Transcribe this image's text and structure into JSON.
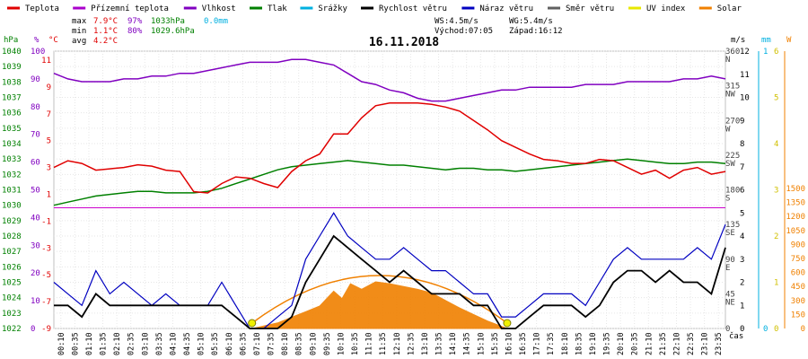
{
  "chart_data": {
    "type": "line",
    "title": "16.11.2018",
    "legend": {
      "placement": "top",
      "items": [
        {
          "name": "Teplota",
          "color": "#e00000"
        },
        {
          "name": "Přízemní teplota",
          "color": "#aa00cc"
        },
        {
          "name": "Vlhkost",
          "color": "#8000c0"
        },
        {
          "name": "Tlak",
          "color": "#008000"
        },
        {
          "name": "Srážky",
          "color": "#00b0e0"
        },
        {
          "name": "Rychlost větru",
          "color": "#000000"
        },
        {
          "name": "Náraz větru",
          "color": "#0000c0"
        },
        {
          "name": "Směr větru",
          "color": "#606060"
        },
        {
          "name": "UV index",
          "color": "#e8e800"
        },
        {
          "name": "Solar",
          "color": "#f08000"
        }
      ]
    },
    "stats": {
      "max_label": "max",
      "max_temp": "7.9°C",
      "max_hum": "97%",
      "max_press": "1033hPa",
      "rain": "0.0mm",
      "min_label": "min",
      "min_temp": "1.1°C",
      "min_hum": "80%",
      "min_press": "1029.6hPa",
      "avg_label": "avg",
      "avg_temp": "4.2°C",
      "ws": "WS:4.5m/s",
      "wg": "WG:5.4m/s",
      "sunrise": "Východ:07:05",
      "sunset": "Západ:16:12"
    },
    "axes": {
      "pressure": {
        "unit": "hPa",
        "ticks": [
          "1040",
          "1039",
          "1038",
          "1037",
          "1036",
          "1035",
          "1034",
          "1033",
          "1032",
          "1031",
          "1030",
          "1029",
          "1028",
          "1027",
          "1026",
          "1025",
          "1024",
          "1023",
          "1022"
        ]
      },
      "humidity": {
        "unit": "%",
        "ticks": [
          "100",
          "90",
          "80",
          "70",
          "60",
          "50",
          "40",
          "30",
          "20",
          "10",
          "0"
        ]
      },
      "temperature": {
        "unit": "°C",
        "ticks": [
          "11",
          "9",
          "7",
          "5",
          "3",
          "1",
          "-1",
          "-3",
          "-5",
          "-7",
          "-9"
        ]
      },
      "wind_speed": {
        "unit": "m/s",
        "ticks": [
          "12",
          "11",
          "10",
          "9",
          "8",
          "7",
          "6",
          "5",
          "4",
          "3",
          "2",
          "1",
          "0"
        ]
      },
      "direction": {
        "ticks": [
          "360",
          "N",
          "315",
          "NW",
          "270",
          "W",
          "225",
          "SW",
          "180",
          "S",
          "135",
          "SE",
          "90",
          "E",
          "45",
          "NE",
          "0"
        ]
      },
      "rain": {
        "unit": "mm",
        "ticks": [
          "1",
          "0"
        ]
      },
      "uv": {
        "unit": "UV",
        "ticks": [
          "6",
          "5",
          "4",
          "3",
          "2",
          "1",
          "0"
        ]
      },
      "solar": {
        "unit": "W",
        "ticks": [
          "1500",
          "1350",
          "1200",
          "1050",
          "900",
          "750",
          "600",
          "450",
          "300",
          "150",
          "0"
        ]
      },
      "time_label": "čas",
      "time_ticks": [
        "00:10",
        "00:35",
        "01:10",
        "01:35",
        "02:10",
        "02:35",
        "03:10",
        "03:35",
        "04:10",
        "04:35",
        "05:10",
        "05:35",
        "06:10",
        "06:35",
        "07:10",
        "07:35",
        "08:10",
        "08:35",
        "09:10",
        "09:35",
        "10:10",
        "10:35",
        "11:10",
        "11:35",
        "12:10",
        "12:35",
        "13:10",
        "13:35",
        "14:10",
        "14:35",
        "15:10",
        "15:35",
        "16:10",
        "16:35",
        "17:10",
        "17:35",
        "18:10",
        "18:35",
        "19:10",
        "19:35",
        "20:10",
        "20:35",
        "21:10",
        "21:35",
        "22:10",
        "22:35",
        "23:10",
        "23:35"
      ]
    },
    "series": [
      {
        "name": "Teplota",
        "unit": "°C",
        "color": "#e00000",
        "x": [
          0,
          0.5,
          1,
          1.5,
          2,
          2.5,
          3,
          3.5,
          4,
          4.5,
          5,
          5.5,
          6,
          6.5,
          7,
          7.5,
          8,
          8.5,
          9,
          9.5,
          10,
          10.5,
          11,
          11.5,
          12,
          12.5,
          13,
          13.5,
          14,
          14.5,
          15,
          15.5,
          16,
          16.5,
          17,
          17.5,
          18,
          18.5,
          19,
          19.5,
          20,
          20.5,
          21,
          21.5,
          22,
          22.5,
          23,
          23.5,
          24
        ],
        "y": [
          3.0,
          3.5,
          3.3,
          2.8,
          2.9,
          3.0,
          3.2,
          3.1,
          2.8,
          2.7,
          1.2,
          1.1,
          1.8,
          2.3,
          2.2,
          1.8,
          1.5,
          2.7,
          3.5,
          4.0,
          5.5,
          5.5,
          6.7,
          7.6,
          7.8,
          7.8,
          7.8,
          7.7,
          7.5,
          7.2,
          6.5,
          5.8,
          5.0,
          4.5,
          4.0,
          3.6,
          3.5,
          3.3,
          3.3,
          3.6,
          3.5,
          3.0,
          2.5,
          2.8,
          2.2,
          2.8,
          3.0,
          2.5,
          2.7
        ]
      },
      {
        "name": "Vlhkost",
        "unit": "%",
        "color": "#8000c0",
        "x": [
          0,
          0.5,
          1,
          1.5,
          2,
          2.5,
          3,
          3.5,
          4,
          4.5,
          5,
          5.5,
          6,
          6.5,
          7,
          7.5,
          8,
          8.5,
          9,
          9.5,
          10,
          10.5,
          11,
          11.5,
          12,
          12.5,
          13,
          13.5,
          14,
          14.5,
          15,
          15.5,
          16,
          16.5,
          17,
          17.5,
          18,
          18.5,
          19,
          19.5,
          20,
          20.5,
          21,
          21.5,
          22,
          22.5,
          23,
          23.5,
          24
        ],
        "y": [
          92,
          90,
          89,
          89,
          89,
          90,
          90,
          91,
          91,
          92,
          92,
          93,
          94,
          95,
          96,
          96,
          96,
          97,
          97,
          96,
          95,
          92,
          89,
          88,
          86,
          85,
          83,
          82,
          82,
          83,
          84,
          85,
          86,
          86,
          87,
          87,
          87,
          87,
          88,
          88,
          88,
          89,
          89,
          89,
          89,
          90,
          90,
          91,
          90
        ]
      },
      {
        "name": "Tlak",
        "unit": "hPa",
        "color": "#008000",
        "x": [
          0,
          0.5,
          1,
          1.5,
          2,
          2.5,
          3,
          3.5,
          4,
          4.5,
          5,
          5.5,
          6,
          6.5,
          7,
          7.5,
          8,
          8.5,
          9,
          9.5,
          10,
          10.5,
          11,
          11.5,
          12,
          12.5,
          13,
          13.5,
          14,
          14.5,
          15,
          15.5,
          16,
          16.5,
          17,
          17.5,
          18,
          18.5,
          19,
          19.5,
          20,
          20.5,
          21,
          21.5,
          22,
          22.5,
          23,
          23.5,
          24
        ],
        "y": [
          1030.0,
          1030.2,
          1030.4,
          1030.6,
          1030.7,
          1030.8,
          1030.9,
          1030.9,
          1030.8,
          1030.8,
          1030.8,
          1030.9,
          1031.1,
          1031.4,
          1031.7,
          1032.0,
          1032.3,
          1032.5,
          1032.6,
          1032.7,
          1032.8,
          1032.9,
          1032.8,
          1032.7,
          1032.6,
          1032.6,
          1032.5,
          1032.4,
          1032.3,
          1032.4,
          1032.4,
          1032.3,
          1032.3,
          1032.2,
          1032.3,
          1032.4,
          1032.5,
          1032.6,
          1032.7,
          1032.8,
          1032.9,
          1033.0,
          1032.9,
          1032.8,
          1032.7,
          1032.7,
          1032.8,
          1032.8,
          1032.7
        ]
      },
      {
        "name": "Rychlost větru",
        "unit": "m/s",
        "color": "#000000",
        "x": [
          0,
          0.5,
          1,
          1.5,
          2,
          2.5,
          3,
          3.5,
          4,
          4.5,
          5,
          5.5,
          6,
          6.5,
          7,
          7.5,
          8,
          8.5,
          9,
          9.5,
          10,
          10.5,
          11,
          11.5,
          12,
          12.5,
          13,
          13.5,
          14,
          14.5,
          15,
          15.5,
          16,
          16.5,
          17,
          17.5,
          18,
          18.5,
          19,
          19.5,
          20,
          20.5,
          21,
          21.5,
          22,
          22.5,
          23,
          23.5,
          24
        ],
        "y": [
          1,
          1,
          0.5,
          1.5,
          1,
          1,
          1,
          1,
          1,
          1,
          1,
          1,
          1,
          0.5,
          0,
          0,
          0,
          0.5,
          2,
          3,
          4,
          3.5,
          3,
          2.5,
          2,
          2.5,
          2,
          1.5,
          1.5,
          1.5,
          1,
          1,
          0,
          0,
          0.5,
          1,
          1,
          1,
          0.5,
          1,
          2,
          2.5,
          2.5,
          2,
          2.5,
          2,
          2,
          1.5,
          3.5
        ]
      },
      {
        "name": "Náraz větru",
        "unit": "m/s",
        "color": "#0000c0",
        "x": [
          0,
          0.5,
          1,
          1.5,
          2,
          2.5,
          3,
          3.5,
          4,
          4.5,
          5,
          5.5,
          6,
          6.5,
          7,
          7.5,
          8,
          8.5,
          9,
          9.5,
          10,
          10.5,
          11,
          11.5,
          12,
          12.5,
          13,
          13.5,
          14,
          14.5,
          15,
          15.5,
          16,
          16.5,
          17,
          17.5,
          18,
          18.5,
          19,
          19.5,
          20,
          20.5,
          21,
          21.5,
          22,
          22.5,
          23,
          23.5,
          24
        ],
        "y": [
          2,
          1.5,
          1,
          2.5,
          1.5,
          2,
          1.5,
          1,
          1.5,
          1,
          1,
          1,
          2,
          1,
          0,
          0,
          0.5,
          1,
          3,
          4,
          5,
          4,
          3.5,
          3,
          3,
          3.5,
          3,
          2.5,
          2.5,
          2,
          1.5,
          1.5,
          0.5,
          0.5,
          1,
          1.5,
          1.5,
          1.5,
          1,
          2,
          3,
          3.5,
          3,
          3,
          3,
          3,
          3.5,
          3,
          4.5
        ]
      },
      {
        "name": "Solar",
        "unit": "W",
        "color": "#f08000",
        "x": [
          7.1,
          8,
          8.5,
          9,
          9.5,
          10,
          10.3,
          10.6,
          11,
          11.5,
          12,
          12.5,
          13,
          13.5,
          14,
          14.5,
          15,
          15.5,
          16.2
        ],
        "y": [
          0,
          60,
          120,
          180,
          240,
          400,
          320,
          480,
          420,
          500,
          480,
          450,
          420,
          380,
          300,
          220,
          150,
          80,
          0
        ]
      }
    ],
    "sun_markers": {
      "sunrise_hour": 7.08,
      "sunset_hour": 16.2
    }
  }
}
